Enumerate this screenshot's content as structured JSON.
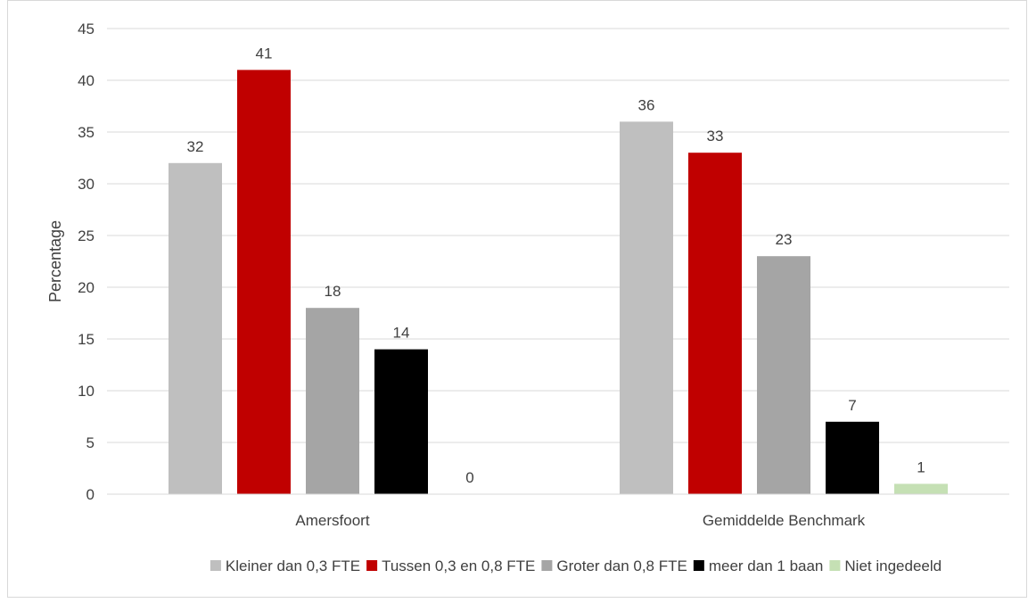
{
  "chart_data": {
    "type": "bar",
    "title": "",
    "xlabel": "",
    "ylabel": "Percentage",
    "ylim": [
      0,
      45
    ],
    "ytick_step": 5,
    "grid": true,
    "legend_position": "bottom",
    "categories": [
      "Amersfoort",
      "Gemiddelde Benchmark"
    ],
    "series": [
      {
        "name": "Kleiner dan 0,3 FTE",
        "color": "#bfbfbf",
        "values": [
          32,
          36
        ]
      },
      {
        "name": "Tussen 0,3 en 0,8 FTE",
        "color": "#c00000",
        "values": [
          41,
          33
        ]
      },
      {
        "name": "Groter dan 0,8 FTE",
        "color": "#a5a5a5",
        "values": [
          18,
          23
        ]
      },
      {
        "name": "meer dan 1 baan",
        "color": "#000000",
        "values": [
          14,
          7
        ]
      },
      {
        "name": "Niet ingedeeld",
        "color": "#c5e0b4",
        "values": [
          0,
          1
        ]
      }
    ]
  }
}
